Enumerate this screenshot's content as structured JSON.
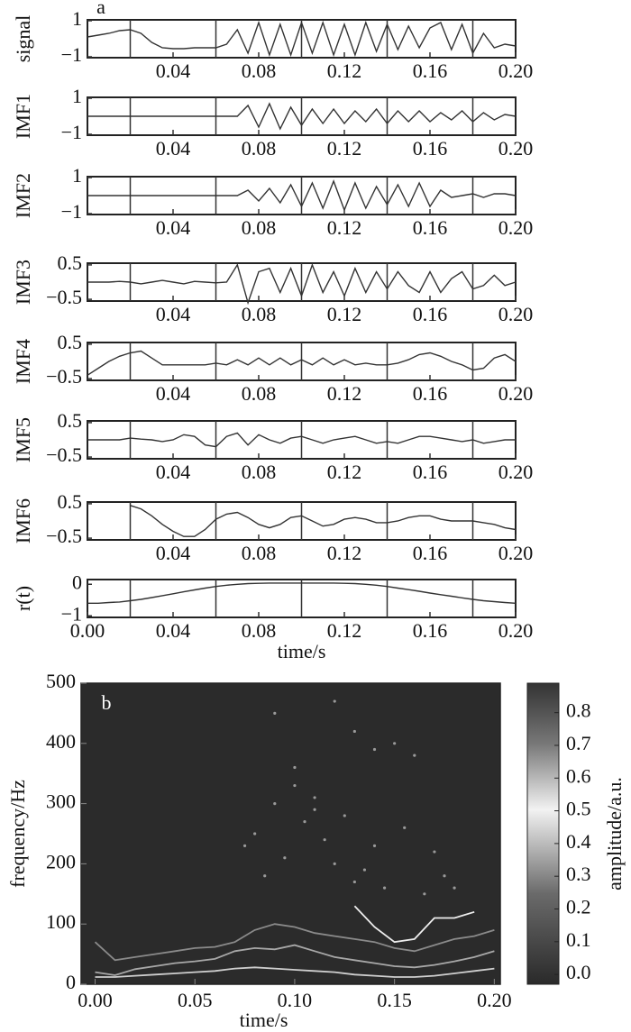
{
  "chart_data": [
    {
      "type": "line",
      "annotation": "a",
      "ylabel": "signal",
      "color": "#333",
      "x": [
        0,
        0.005,
        0.01,
        0.015,
        0.02,
        0.025,
        0.03,
        0.035,
        0.04,
        0.045,
        0.05,
        0.055,
        0.06,
        0.065,
        0.07,
        0.075,
        0.08,
        0.085,
        0.09,
        0.095,
        0.1,
        0.105,
        0.11,
        0.115,
        0.12,
        0.125,
        0.13,
        0.135,
        0.14,
        0.145,
        0.15,
        0.155,
        0.16,
        0.165,
        0.17,
        0.175,
        0.18,
        0.185,
        0.19,
        0.195,
        0.2
      ],
      "values": [
        0.1,
        0.2,
        0.3,
        0.45,
        0.5,
        0.3,
        -0.2,
        -0.5,
        -0.55,
        -0.55,
        -0.5,
        -0.5,
        -0.5,
        -0.3,
        0.5,
        -0.8,
        0.9,
        -0.9,
        0.8,
        -0.9,
        0.9,
        -0.8,
        0.9,
        -0.9,
        0.8,
        -0.9,
        0.9,
        -0.7,
        0.8,
        -0.6,
        0.7,
        -0.5,
        0.6,
        0.9,
        -0.6,
        0.8,
        -0.8,
        0.3,
        -0.5,
        -0.3,
        -0.4
      ],
      "xlim": [
        0,
        0.2
      ],
      "xticks": [
        0.04,
        0.08,
        0.12,
        0.16,
        {
          "value": 0.2,
          "label": "0.20"
        }
      ],
      "xgrid": [
        0.02,
        0.06,
        0.1,
        0.14,
        0.18
      ],
      "ylim": [
        -1.05,
        1.05
      ],
      "yticks": [
        {
          "value": -1,
          "label": "−1"
        },
        1
      ]
    },
    {
      "type": "line",
      "ylabel": "IMF1",
      "color": "#333",
      "x": [
        0,
        0.005,
        0.01,
        0.015,
        0.02,
        0.025,
        0.03,
        0.035,
        0.04,
        0.045,
        0.05,
        0.055,
        0.06,
        0.065,
        0.07,
        0.075,
        0.08,
        0.085,
        0.09,
        0.095,
        0.1,
        0.105,
        0.11,
        0.115,
        0.12,
        0.125,
        0.13,
        0.135,
        0.14,
        0.145,
        0.15,
        0.155,
        0.16,
        0.165,
        0.17,
        0.175,
        0.18,
        0.185,
        0.19,
        0.195,
        0.2
      ],
      "values": [
        0,
        0,
        0,
        0,
        0,
        0,
        0,
        0,
        0,
        0,
        0,
        0,
        0,
        0,
        0,
        0.6,
        -0.6,
        0.7,
        -0.7,
        0.5,
        -0.5,
        0.4,
        -0.4,
        0.4,
        -0.4,
        0.3,
        -0.3,
        0.4,
        -0.4,
        0.3,
        -0.3,
        0.3,
        -0.3,
        0.2,
        -0.2,
        0.3,
        -0.3,
        0.2,
        -0.2,
        0.1,
        0
      ],
      "xlim": [
        0,
        0.2
      ],
      "xticks": [
        0.04,
        0.08,
        0.12,
        0.16,
        {
          "value": 0.2,
          "label": "0.20"
        }
      ],
      "xgrid": [
        0.02,
        0.06,
        0.1,
        0.14,
        0.18
      ],
      "ylim": [
        -1.05,
        1.05
      ],
      "yticks": [
        {
          "value": -1,
          "label": "−1"
        },
        1
      ]
    },
    {
      "type": "line",
      "ylabel": "IMF2",
      "color": "#333",
      "x": [
        0,
        0.005,
        0.01,
        0.015,
        0.02,
        0.025,
        0.03,
        0.035,
        0.04,
        0.045,
        0.05,
        0.055,
        0.06,
        0.065,
        0.07,
        0.075,
        0.08,
        0.085,
        0.09,
        0.095,
        0.1,
        0.105,
        0.11,
        0.115,
        0.12,
        0.125,
        0.13,
        0.135,
        0.14,
        0.145,
        0.15,
        0.155,
        0.16,
        0.165,
        0.17,
        0.175,
        0.18,
        0.185,
        0.19,
        0.195,
        0.2
      ],
      "values": [
        0,
        0,
        0,
        0,
        0,
        0,
        0,
        0,
        0,
        0,
        0,
        0,
        0,
        0,
        0,
        0.3,
        -0.3,
        0.4,
        -0.4,
        0.6,
        -0.6,
        0.7,
        -0.7,
        0.8,
        -0.8,
        0.7,
        -0.7,
        0.5,
        -0.5,
        0.6,
        -0.6,
        0.7,
        -0.6,
        0.3,
        -0.1,
        0,
        0.1,
        -0.1,
        0.1,
        0.1,
        0
      ],
      "xlim": [
        0,
        0.2
      ],
      "xticks": [
        0.04,
        0.08,
        0.12,
        0.16,
        {
          "value": 0.2,
          "label": "0.20"
        }
      ],
      "xgrid": [
        0.02,
        0.06,
        0.1,
        0.14,
        0.18
      ],
      "ylim": [
        -1.05,
        1.05
      ],
      "yticks": [
        {
          "value": -1,
          "label": "−1"
        },
        1
      ]
    },
    {
      "type": "line",
      "ylabel": "IMF3",
      "color": "#333",
      "x": [
        0,
        0.005,
        0.01,
        0.015,
        0.02,
        0.025,
        0.03,
        0.035,
        0.04,
        0.045,
        0.05,
        0.055,
        0.06,
        0.065,
        0.07,
        0.075,
        0.08,
        0.085,
        0.09,
        0.095,
        0.1,
        0.105,
        0.11,
        0.115,
        0.12,
        0.125,
        0.13,
        0.135,
        0.14,
        0.145,
        0.15,
        0.155,
        0.16,
        0.165,
        0.17,
        0.175,
        0.18,
        0.185,
        0.19,
        0.195,
        0.2
      ],
      "values": [
        0,
        0,
        0,
        0.02,
        0,
        -0.05,
        0,
        0.05,
        0,
        -0.05,
        0.02,
        0,
        -0.02,
        0,
        0.5,
        -0.6,
        0.3,
        0.4,
        -0.3,
        0.4,
        -0.4,
        0.5,
        -0.3,
        0.3,
        -0.4,
        0.4,
        -0.3,
        0.3,
        -0.2,
        0.3,
        -0.1,
        -0.3,
        0.3,
        -0.3,
        0.1,
        0.3,
        -0.2,
        -0.1,
        0.2,
        -0.1,
        0
      ],
      "xlim": [
        0,
        0.2
      ],
      "xticks": [
        0.04,
        0.08,
        0.12,
        0.16,
        {
          "value": 0.2,
          "label": "0.20"
        }
      ],
      "xgrid": [
        0.02,
        0.06,
        0.1,
        0.14,
        0.18
      ],
      "ylim": [
        -0.55,
        0.55
      ],
      "yticks": [
        {
          "value": -0.5,
          "label": "−0.5"
        },
        0.5
      ]
    },
    {
      "type": "line",
      "ylabel": "IMF4",
      "color": "#333",
      "x": [
        0,
        0.005,
        0.01,
        0.015,
        0.02,
        0.025,
        0.03,
        0.035,
        0.04,
        0.045,
        0.05,
        0.055,
        0.06,
        0.065,
        0.07,
        0.075,
        0.08,
        0.085,
        0.09,
        0.095,
        0.1,
        0.105,
        0.11,
        0.115,
        0.12,
        0.125,
        0.13,
        0.135,
        0.14,
        0.145,
        0.15,
        0.155,
        0.16,
        0.165,
        0.17,
        0.175,
        0.18,
        0.185,
        0.19,
        0.195,
        0.2
      ],
      "values": [
        -0.4,
        -0.2,
        0,
        0.15,
        0.25,
        0.3,
        0.1,
        -0.1,
        -0.1,
        -0.1,
        -0.1,
        -0.1,
        -0.05,
        -0.1,
        0.05,
        -0.1,
        0.1,
        -0.1,
        0.1,
        -0.1,
        0.05,
        -0.1,
        0.1,
        -0.1,
        0.05,
        -0.1,
        -0.05,
        -0.1,
        -0.1,
        -0.05,
        0.05,
        0.2,
        0.25,
        0.15,
        0,
        -0.1,
        -0.25,
        -0.2,
        0.1,
        0.2,
        0
      ],
      "xlim": [
        0,
        0.2
      ],
      "xticks": [
        0.04,
        0.08,
        0.12,
        0.16,
        {
          "value": 0.2,
          "label": "0.20"
        }
      ],
      "xgrid": [
        0.02,
        0.06,
        0.1,
        0.14,
        0.18
      ],
      "ylim": [
        -0.55,
        0.55
      ],
      "yticks": [
        {
          "value": -0.5,
          "label": "−0.5"
        },
        0.5
      ]
    },
    {
      "type": "line",
      "ylabel": "IMF5",
      "color": "#333",
      "x": [
        0,
        0.005,
        0.01,
        0.015,
        0.02,
        0.025,
        0.03,
        0.035,
        0.04,
        0.045,
        0.05,
        0.055,
        0.06,
        0.065,
        0.07,
        0.075,
        0.08,
        0.085,
        0.09,
        0.095,
        0.1,
        0.105,
        0.11,
        0.115,
        0.12,
        0.125,
        0.13,
        0.135,
        0.14,
        0.145,
        0.15,
        0.155,
        0.16,
        0.165,
        0.17,
        0.175,
        0.18,
        0.185,
        0.19,
        0.195,
        0.2
      ],
      "values": [
        0,
        0,
        0,
        0,
        0.05,
        0.02,
        0,
        -0.05,
        0,
        0.15,
        0.1,
        -0.15,
        -0.2,
        0.1,
        0.2,
        -0.15,
        0.15,
        0,
        -0.1,
        0.05,
        0.1,
        0,
        -0.1,
        0,
        0.05,
        0.1,
        0,
        -0.1,
        -0.05,
        -0.1,
        0,
        0.1,
        0.1,
        0.05,
        0,
        -0.05,
        0,
        -0.1,
        -0.05,
        0,
        0
      ],
      "xlim": [
        0,
        0.2
      ],
      "xticks": [
        0.04,
        0.08,
        0.12,
        0.16,
        {
          "value": 0.2,
          "label": "0.20"
        }
      ],
      "xgrid": [
        0.02,
        0.06,
        0.1,
        0.14,
        0.18
      ],
      "ylim": [
        -0.55,
        0.55
      ],
      "yticks": [
        {
          "value": -0.5,
          "label": "−0.5"
        },
        0.5
      ]
    },
    {
      "type": "line",
      "ylabel": "IMF6",
      "color": "#333",
      "x": [
        0,
        0.005,
        0.01,
        0.015,
        0.02,
        0.025,
        0.03,
        0.035,
        0.04,
        0.045,
        0.05,
        0.055,
        0.06,
        0.065,
        0.07,
        0.075,
        0.08,
        0.085,
        0.09,
        0.095,
        0.1,
        0.105,
        0.11,
        0.115,
        0.12,
        0.125,
        0.13,
        0.135,
        0.14,
        0.145,
        0.15,
        0.155,
        0.16,
        0.165,
        0.17,
        0.175,
        0.18,
        0.185,
        0.19,
        0.195,
        0.2
      ],
      "values": [
        null,
        null,
        null,
        null,
        0.45,
        0.35,
        0.15,
        -0.1,
        -0.3,
        -0.45,
        -0.45,
        -0.25,
        0.05,
        0.2,
        0.25,
        0.1,
        -0.1,
        -0.2,
        -0.1,
        0.1,
        0.15,
        0,
        -0.15,
        -0.1,
        0.05,
        0.1,
        0.05,
        -0.05,
        -0.05,
        0,
        0.1,
        0.15,
        0.15,
        0.05,
        0,
        0,
        0,
        -0.05,
        -0.1,
        -0.2,
        -0.25
      ],
      "xlim": [
        0,
        0.2
      ],
      "xticks": [
        0.04,
        0.08,
        0.12,
        0.16,
        {
          "value": 0.2,
          "label": "0.20"
        }
      ],
      "xgrid": [
        0.02,
        0.06,
        0.1,
        0.14,
        0.18
      ],
      "ylim": [
        -0.55,
        0.55
      ],
      "yticks": [
        {
          "value": -0.5,
          "label": "−0.5"
        },
        0.5
      ]
    },
    {
      "type": "line",
      "ylabel": "r(t)",
      "xlabel": "time/s",
      "color": "#333",
      "x": [
        0,
        0.005,
        0.01,
        0.015,
        0.02,
        0.025,
        0.03,
        0.035,
        0.04,
        0.045,
        0.05,
        0.055,
        0.06,
        0.065,
        0.07,
        0.075,
        0.08,
        0.085,
        0.09,
        0.095,
        0.1,
        0.105,
        0.11,
        0.115,
        0.12,
        0.125,
        0.13,
        0.135,
        0.14,
        0.145,
        0.15,
        0.155,
        0.16,
        0.165,
        0.17,
        0.175,
        0.18,
        0.185,
        0.19,
        0.195,
        0.2
      ],
      "values": [
        -0.6,
        -0.6,
        -0.58,
        -0.56,
        -0.52,
        -0.48,
        -0.42,
        -0.36,
        -0.3,
        -0.24,
        -0.18,
        -0.12,
        -0.07,
        -0.03,
        0,
        0.02,
        0.03,
        0.04,
        0.04,
        0.04,
        0.04,
        0.04,
        0.04,
        0.04,
        0.03,
        0.02,
        0,
        -0.03,
        -0.07,
        -0.12,
        -0.17,
        -0.22,
        -0.28,
        -0.33,
        -0.38,
        -0.43,
        -0.48,
        -0.52,
        -0.55,
        -0.58,
        -0.6
      ],
      "xlim": [
        0,
        0.2
      ],
      "xticks": [
        {
          "value": 0,
          "label": "0.00"
        },
        0.04,
        0.08,
        0.12,
        0.16,
        {
          "value": 0.2,
          "label": "0.20"
        }
      ],
      "xgrid": [
        0.02,
        0.06,
        0.1,
        0.14,
        0.18
      ],
      "ylim": [
        -1.05,
        0.15
      ],
      "yticks": [
        {
          "value": -1,
          "label": "−1"
        },
        0
      ]
    },
    {
      "type": "spectrogram",
      "annotation": "b",
      "xlabel": "time/s",
      "ylabel": "frequency/Hz",
      "x": [
        0,
        0.01,
        0.02,
        0.03,
        0.04,
        0.05,
        0.06,
        0.07,
        0.08,
        0.09,
        0.1,
        0.11,
        0.12,
        0.13,
        0.14,
        0.15,
        0.16,
        0.17,
        0.18,
        0.19,
        0.2
      ],
      "series": [
        {
          "color": "#cfcfcf",
          "values": [
            12,
            12,
            14,
            16,
            18,
            20,
            22,
            26,
            28,
            26,
            24,
            22,
            20,
            16,
            14,
            12,
            12,
            14,
            18,
            22,
            26
          ]
        },
        {
          "color": "#a8a8a8",
          "values": [
            20,
            15,
            25,
            30,
            35,
            38,
            42,
            55,
            60,
            58,
            65,
            55,
            45,
            40,
            35,
            30,
            28,
            32,
            38,
            45,
            55
          ]
        },
        {
          "color": "#8a8a8a",
          "values": [
            70,
            40,
            45,
            50,
            55,
            60,
            62,
            70,
            90,
            100,
            95,
            85,
            80,
            75,
            70,
            60,
            55,
            65,
            75,
            80,
            90
          ]
        },
        {
          "color": "#eeeeee",
          "values": [
            null,
            null,
            null,
            null,
            null,
            null,
            null,
            null,
            null,
            null,
            null,
            null,
            null,
            130,
            95,
            70,
            75,
            110,
            110,
            120,
            null
          ]
        }
      ],
      "points": {
        "color": "#9a9a9a",
        "x": [
          0.075,
          0.08,
          0.085,
          0.09,
          0.095,
          0.1,
          0.105,
          0.11,
          0.115,
          0.12,
          0.125,
          0.13,
          0.135,
          0.14,
          0.145,
          0.15,
          0.155,
          0.16,
          0.165,
          0.17,
          0.175,
          0.18,
          0.09,
          0.1,
          0.12,
          0.13,
          0.14,
          0.11
        ],
        "y": [
          230,
          250,
          180,
          300,
          210,
          330,
          270,
          310,
          240,
          200,
          280,
          170,
          190,
          230,
          160,
          400,
          260,
          380,
          150,
          220,
          180,
          160,
          450,
          360,
          470,
          420,
          390,
          290
        ]
      },
      "xlim": [
        -0.007,
        0.203
      ],
      "xticks": [
        {
          "value": 0,
          "label": "0.00"
        },
        0.05,
        {
          "value": 0.1,
          "label": "0.10"
        },
        0.15,
        {
          "value": 0.2,
          "label": "0.20"
        }
      ],
      "ylim": [
        0,
        500
      ],
      "yticks": [
        0,
        100,
        200,
        300,
        400,
        500
      ],
      "colorbar": {
        "label": "amplitude/a.u.",
        "lim": [
          -0.03,
          0.89
        ],
        "ticks": [
          {
            "value": 0,
            "label": "0.0"
          },
          0.1,
          0.2,
          0.3,
          0.4,
          0.5,
          0.6,
          0.7,
          0.8
        ]
      }
    }
  ]
}
